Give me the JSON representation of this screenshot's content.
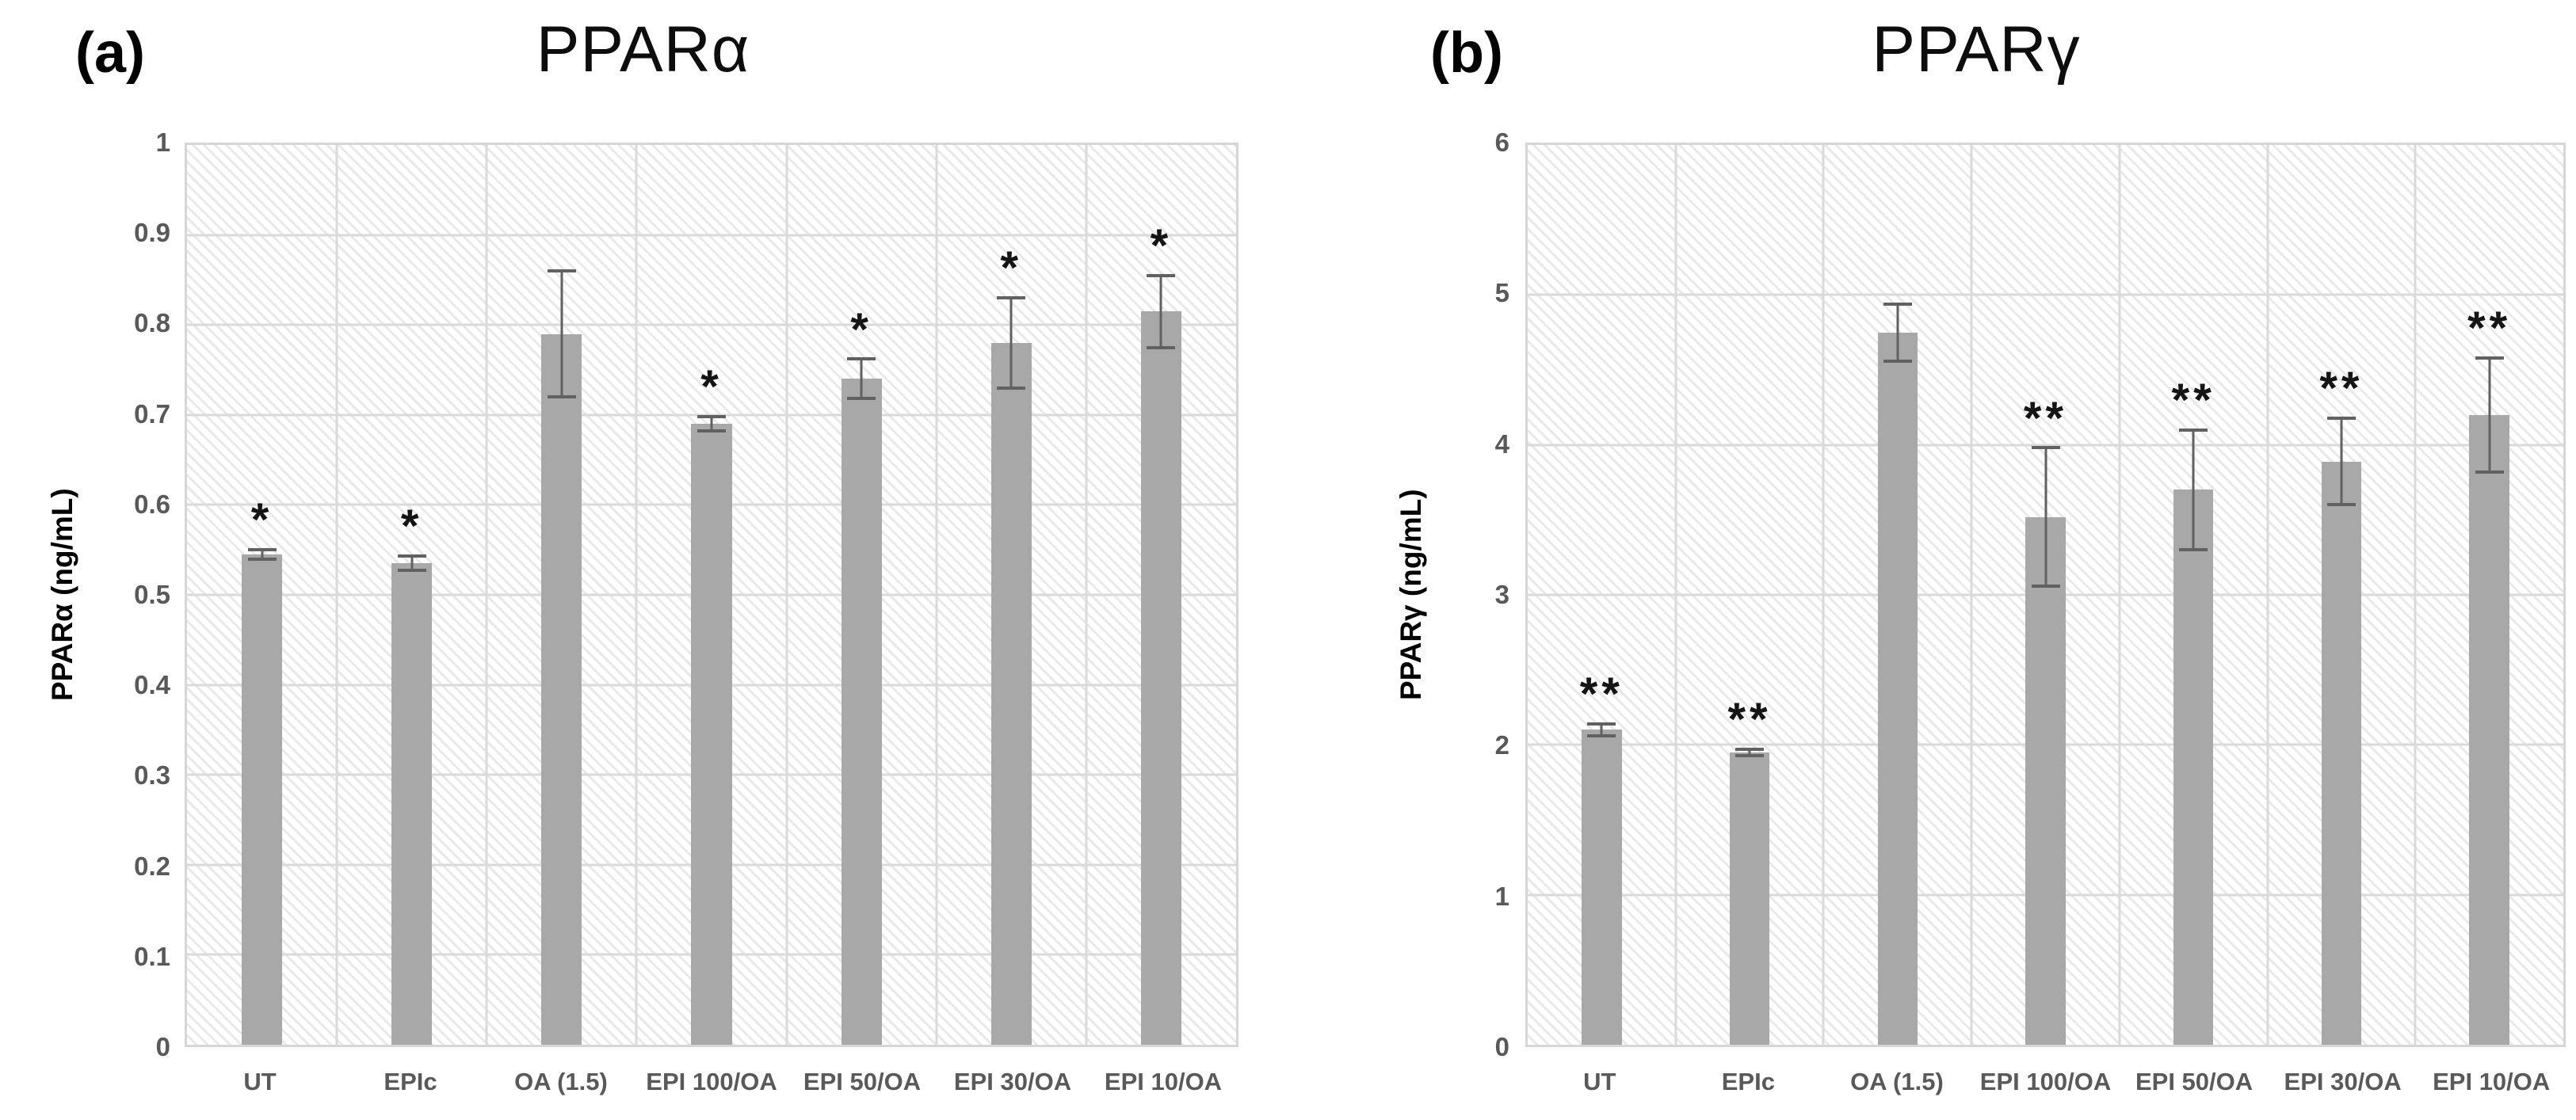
{
  "chart_data": [
    {
      "type": "bar",
      "panel_label": "(a)",
      "title": "PPARα",
      "ylabel": "PPARα (ng/mL)",
      "xlabel": "",
      "categories": [
        "UT",
        "EPIc",
        "OA (1.5)",
        "EPI 100/OA",
        "EPI 50/OA",
        "EPI 30/OA",
        "EPI 10/OA"
      ],
      "values": [
        0.545,
        0.535,
        0.79,
        0.69,
        0.74,
        0.78,
        0.815
      ],
      "errors": [
        0.005,
        0.008,
        0.07,
        0.008,
        0.022,
        0.05,
        0.04
      ],
      "significance": [
        "*",
        "*",
        "",
        "*",
        "*",
        "*",
        "*"
      ],
      "ylim": [
        0,
        1
      ],
      "ytick_step": 0.1,
      "grid": "horizontal and vertical gridlines, hatched plot background",
      "legend": "none"
    },
    {
      "type": "bar",
      "panel_label": "(b)",
      "title": "PPARγ",
      "ylabel": "PPARγ (ng/mL)",
      "xlabel": "",
      "categories": [
        "UT",
        "EPIc",
        "OA (1.5)",
        "EPI 100/OA",
        "EPI 50/OA",
        "EPI 30/OA",
        "EPI 10/OA"
      ],
      "values": [
        2.1,
        1.95,
        4.75,
        3.52,
        3.7,
        3.89,
        4.2
      ],
      "errors": [
        0.04,
        0.02,
        0.19,
        0.46,
        0.4,
        0.29,
        0.38
      ],
      "significance": [
        "**",
        "**",
        "",
        "**",
        "**",
        "**",
        "**"
      ],
      "ylim": [
        0,
        6
      ],
      "ytick_step": 1,
      "grid": "horizontal and vertical gridlines, hatched plot background",
      "legend": "none"
    }
  ],
  "colors": {
    "bar_fill": "#a8a8a8",
    "error_bar": "#616161",
    "gridline": "#dadada",
    "plot_border": "#d6d6d6",
    "hatch_line": "#e9e9e9",
    "tick_text": "#595959",
    "title_text": "#0d0d0d",
    "significance_text": "#141414",
    "background": "#ffffff"
  }
}
